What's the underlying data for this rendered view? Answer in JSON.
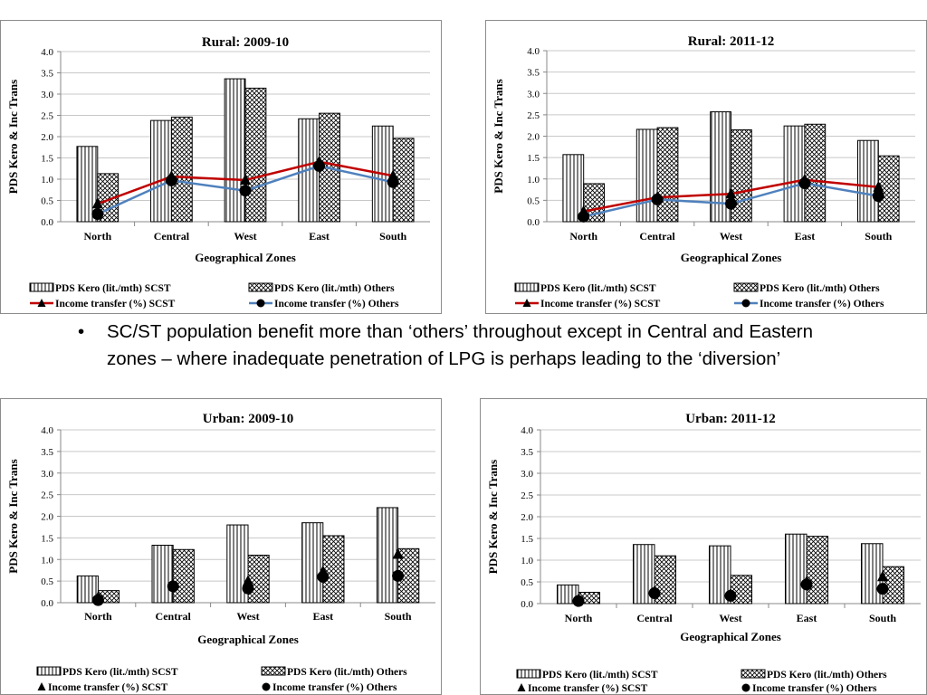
{
  "colors": {
    "line_scst": "#c00000",
    "line_others": "#4f81bd",
    "bar_border": "#000000",
    "gridline": "#c8c8c8"
  },
  "bullet": {
    "symbol": "•",
    "text": "SC/ST population benefit more than ‘others’ throughout except in Central and Eastern zones – where inadequate penetration of LPG is perhaps leading to the ‘diversion’"
  },
  "chart_data": [
    {
      "type": "bar",
      "title": "Rural: 2009-10",
      "xlabel": "Geographical Zones",
      "ylabel": "PDS Kero & Inc Trans",
      "ylim": [
        0,
        4
      ],
      "yticks": [
        "0.0",
        "0.5",
        "1.0",
        "1.5",
        "2.0",
        "2.5",
        "3.0",
        "3.5",
        "4.0"
      ],
      "categories": [
        "North",
        "Central",
        "West",
        "East",
        "South"
      ],
      "bar_series": [
        {
          "name": "PDS Kero (lit./mth) SCST",
          "pattern": "vertical",
          "values": [
            1.77,
            2.38,
            3.36,
            2.42,
            2.25
          ]
        },
        {
          "name": "PDS Kero (lit./mth) Others",
          "pattern": "crosshatch",
          "values": [
            1.13,
            2.46,
            3.14,
            2.55,
            1.96
          ]
        }
      ],
      "line_series": [
        {
          "name": "Income transfer (%) SCST",
          "marker": "triangle",
          "line": true,
          "values": [
            0.42,
            1.06,
            0.98,
            1.41,
            1.08
          ]
        },
        {
          "name": "Income transfer (%) Others",
          "marker": "circle",
          "line": true,
          "values": [
            0.18,
            0.97,
            0.73,
            1.31,
            0.93
          ]
        }
      ]
    },
    {
      "type": "bar",
      "title": "Rural: 2011-12",
      "xlabel": "Geographical Zones",
      "ylabel": "PDS Kero & Inc Trans",
      "ylim": [
        0,
        4
      ],
      "yticks": [
        "0.0",
        "0.5",
        "1.0",
        "1.5",
        "2.0",
        "2.5",
        "3.0",
        "3.5",
        "4.0"
      ],
      "categories": [
        "North",
        "Central",
        "West",
        "East",
        "South"
      ],
      "bar_series": [
        {
          "name": "PDS Kero (lit./mth) SCST",
          "pattern": "vertical",
          "values": [
            1.57,
            2.16,
            2.57,
            2.24,
            1.9
          ]
        },
        {
          "name": "PDS Kero (lit./mth) Others",
          "pattern": "crosshatch",
          "values": [
            0.89,
            2.2,
            2.15,
            2.28,
            1.54
          ]
        }
      ],
      "line_series": [
        {
          "name": "Income transfer (%) SCST",
          "marker": "triangle",
          "line": true,
          "values": [
            0.24,
            0.57,
            0.65,
            0.98,
            0.81
          ]
        },
        {
          "name": "Income transfer (%) Others",
          "marker": "circle",
          "line": true,
          "values": [
            0.12,
            0.52,
            0.42,
            0.9,
            0.6
          ]
        }
      ]
    },
    {
      "type": "bar",
      "title": "Urban: 2009-10",
      "xlabel": "Geographical Zones",
      "ylabel": "PDS Kero & Inc Trans",
      "ylim": [
        0,
        4
      ],
      "yticks": [
        "0.0",
        "0.5",
        "1.0",
        "1.5",
        "2.0",
        "2.5",
        "3.0",
        "3.5",
        "4.0"
      ],
      "categories": [
        "North",
        "Central",
        "West",
        "East",
        "South"
      ],
      "bar_series": [
        {
          "name": "PDS Kero (lit./mth) SCST",
          "pattern": "vertical",
          "values": [
            0.62,
            1.33,
            1.8,
            1.85,
            2.2
          ]
        },
        {
          "name": "PDS Kero (lit./mth) Others",
          "pattern": "crosshatch",
          "values": [
            0.28,
            1.23,
            1.1,
            1.55,
            1.25
          ]
        }
      ],
      "line_series": [
        {
          "name": "Income transfer (%) SCST",
          "marker": "triangle",
          "line": false,
          "values": [
            0.12,
            0.4,
            0.5,
            0.72,
            1.12
          ]
        },
        {
          "name": "Income transfer (%) Others",
          "marker": "circle",
          "line": false,
          "values": [
            0.06,
            0.38,
            0.33,
            0.6,
            0.62
          ]
        }
      ]
    },
    {
      "type": "bar",
      "title": "Urban: 2011-12",
      "xlabel": "Geographical Zones",
      "ylabel": "PDS Kero & Inc Trans",
      "ylim": [
        0,
        4
      ],
      "yticks": [
        "0.0",
        "0.5",
        "1.0",
        "1.5",
        "2.0",
        "2.5",
        "3.0",
        "3.5",
        "4.0"
      ],
      "categories": [
        "North",
        "Central",
        "West",
        "East",
        "South"
      ],
      "bar_series": [
        {
          "name": "PDS Kero (lit./mth) SCST",
          "pattern": "vertical",
          "values": [
            0.43,
            1.36,
            1.33,
            1.6,
            1.38
          ]
        },
        {
          "name": "PDS Kero (lit./mth) Others",
          "pattern": "crosshatch",
          "values": [
            0.26,
            1.1,
            0.65,
            1.55,
            0.85
          ]
        }
      ],
      "line_series": [
        {
          "name": "Income transfer (%) SCST",
          "marker": "triangle",
          "line": false,
          "values": [
            0.1,
            0.28,
            0.22,
            0.5,
            0.62
          ]
        },
        {
          "name": "Income transfer (%) Others",
          "marker": "circle",
          "line": false,
          "values": [
            0.06,
            0.24,
            0.18,
            0.44,
            0.34
          ]
        }
      ]
    }
  ]
}
